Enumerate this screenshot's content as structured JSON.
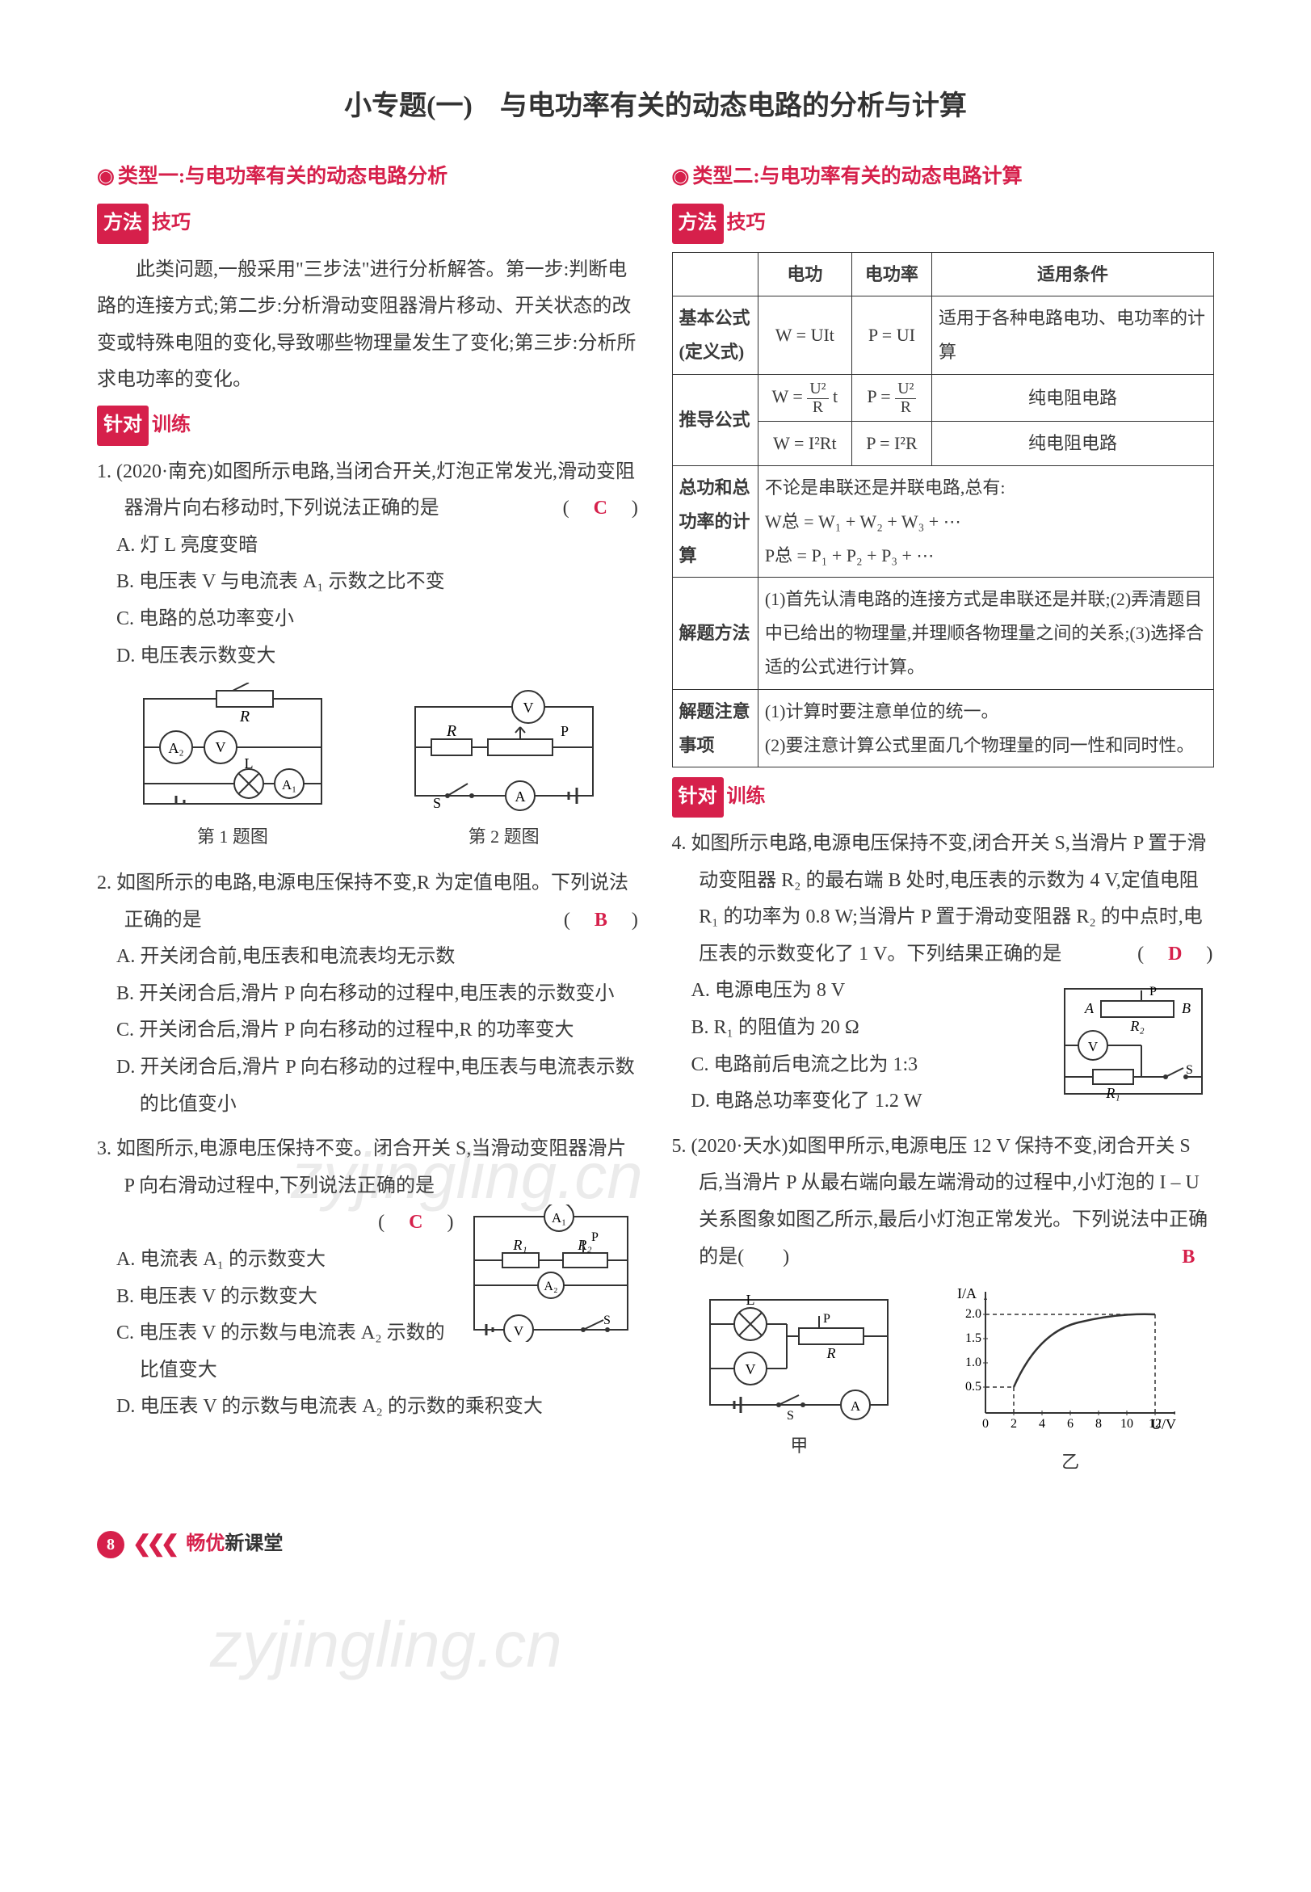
{
  "title": "小专题(一)　与电功率有关的动态电路的分析与计算",
  "left": {
    "type_header": "类型一:与电功率有关的动态电路分析",
    "method_tag_a": "方法",
    "method_tag_b": "技巧",
    "method_para": "此类问题,一般采用\"三步法\"进行分析解答。第一步:判断电路的连接方式;第二步:分析滑动变阻器滑片移动、开关状态的改变或特殊电阻的变化,导致哪些物理量发生了变化;第三步:分析所求电功率的变化。",
    "practice_tag_a": "针对",
    "practice_tag_b": "训练",
    "q1": {
      "stem": "1. (2020·南充)如图所示电路,当闭合开关,灯泡正常发光,滑动变阻器滑片向右移动时,下列说法正确的是",
      "answer": "C",
      "opts": [
        "A. 灯 L 亮度变暗",
        "B. 电压表 V 与电流表 A₁ 示数之比不变",
        "C. 电路的总功率变小",
        "D. 电压表示数变大"
      ]
    },
    "fig1_label": "第 1 题图",
    "fig2_label": "第 2 题图",
    "q2": {
      "stem": "2. 如图所示的电路,电源电压保持不变,R 为定值电阻。下列说法正确的是",
      "answer": "B",
      "opts": [
        "A. 开关闭合前,电压表和电流表均无示数",
        "B. 开关闭合后,滑片 P 向右移动的过程中,电压表的示数变小",
        "C. 开关闭合后,滑片 P 向右移动的过程中,R 的功率变大",
        "D. 开关闭合后,滑片 P 向右移动的过程中,电压表与电流表示数的比值变小"
      ]
    },
    "q3": {
      "stem": "3. 如图所示,电源电压保持不变。闭合开关 S,当滑动变阻器滑片 P 向右滑动过程中,下列说法正确的是",
      "answer": "C",
      "opts": [
        "A. 电流表 A₁ 的示数变大",
        "B. 电压表 V 的示数变大",
        "C. 电压表 V 的示数与电流表 A₂ 示数的比值变大",
        "D. 电压表 V 的示数与电流表 A₂ 的示数的乘积变大"
      ]
    }
  },
  "right": {
    "type_header": "类型二:与电功率有关的动态电路计算",
    "method_tag_a": "方法",
    "method_tag_b": "技巧",
    "table": {
      "headers": [
        "",
        "电功",
        "电功率",
        "适用条件"
      ],
      "row1_label": "基本公式(定义式)",
      "row1_w": "W = UIt",
      "row1_p": "P = UI",
      "row1_cond": "适用于各种电路电功、电功率的计算",
      "row2_label": "推导公式",
      "row2a_w_html": "W = <span class='frac'><span class='n'>U²</span><span class='d'>R</span></span> t",
      "row2a_p_html": "P = <span class='frac'><span class='n'>U²</span><span class='d'>R</span></span>",
      "row2a_cond": "纯电阻电路",
      "row2b_w": "W = I²Rt",
      "row2b_p": "P = I²R",
      "row2b_cond": "纯电阻电路",
      "row3_label": "总功和总功率的计算",
      "row3_body": "不论是串联还是并联电路,总有:\nW总 = W₁ + W₂ + W₃ + ⋯\nP总 = P₁ + P₂ + P₃ + ⋯",
      "row4_label": "解题方法",
      "row4_body": "(1)首先认清电路的连接方式是串联还是并联;(2)弄清题目中已给出的物理量,并理顺各物理量之间的关系;(3)选择合适的公式进行计算。",
      "row5_label": "解题注意事项",
      "row5_body": "(1)计算时要注意单位的统一。\n(2)要注意计算公式里面几个物理量的同一性和同时性。"
    },
    "practice_tag_a": "针对",
    "practice_tag_b": "训练",
    "q4": {
      "stem": "4. 如图所示电路,电源电压保持不变,闭合开关 S,当滑片 P 置于滑动变阻器 R₂ 的最右端 B 处时,电压表的示数为 4 V,定值电阻 R₁ 的功率为 0.8 W;当滑片 P 置于滑动变阻器 R₂ 的中点时,电压表的示数变化了 1 V。下列结果正确的是",
      "answer": "D",
      "opts": [
        "A. 电源电压为 8 V",
        "B. R₁ 的阻值为 20 Ω",
        "C. 电路前后电流之比为 1:3",
        "D. 电路总功率变化了 1.2 W"
      ]
    },
    "q5": {
      "stem": "5. (2020·天水)如图甲所示,电源电压 12 V 保持不变,闭合开关 S 后,当滑片 P 从最右端向最左端滑动的过程中,小灯泡的 I – U 关系图象如图乙所示,最后小灯泡正常发光。下列说法中正确的是(　　)",
      "answer": "B"
    },
    "fig5a_label": "甲",
    "fig5b_label": "乙",
    "graph": {
      "ylabel": "I/A",
      "xlabel": "U/V",
      "yticks": [
        "0.5",
        "1.0",
        "1.5",
        "2.0"
      ],
      "xticks": [
        "2",
        "4",
        "6",
        "8",
        "10",
        "12"
      ],
      "curve_color": "#333333",
      "dashed_x": 12,
      "dashed_y": 2.0
    }
  },
  "footer": {
    "page": "8",
    "brand_a": "畅优",
    "brand_b": "新课堂"
  },
  "colors": {
    "accent": "#d6204b",
    "text": "#3a3a3a",
    "border": "#333333",
    "background": "#ffffff"
  }
}
